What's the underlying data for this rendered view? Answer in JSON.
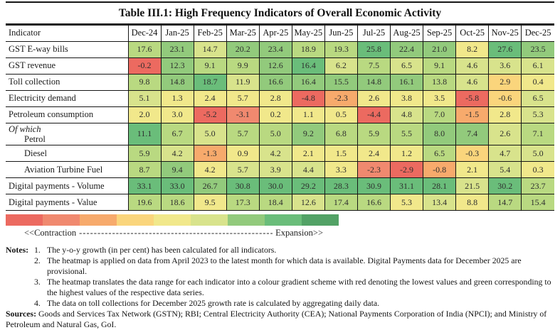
{
  "page_title": "Table III.1: High Frequency Indicators of Overall Economic Activity",
  "palette": [
    "#ec6a60",
    "#f0896f",
    "#f7aa6c",
    "#fad57c",
    "#f1e88b",
    "#d8e38c",
    "#b9d981",
    "#92ca7c",
    "#6abd7a",
    "#52a266"
  ],
  "chart_data": {
    "type": "heatmap",
    "title": "Table III.1: High Frequency Indicators of Overall Economic Activity",
    "indicator_header": "Indicator",
    "columns": [
      "Dec-24",
      "Jan-25",
      "Feb-25",
      "Mar-25",
      "Apr-25",
      "May-25",
      "Jun-25",
      "Jul-25",
      "Aug-25",
      "Sep-25",
      "Oct-25",
      "Nov-25",
      "Dec-25"
    ],
    "value_note": "y-o-y growth (per cent)",
    "rows": [
      {
        "label": "GST E-way bills",
        "values": [
          17.6,
          23.1,
          14.7,
          20.2,
          23.4,
          18.9,
          19.3,
          25.8,
          22.4,
          21.0,
          8.2,
          27.6,
          23.5
        ],
        "color_index": [
          6,
          7,
          5,
          7,
          7,
          6,
          6,
          8,
          7,
          7,
          4,
          8,
          7
        ]
      },
      {
        "label": "GST revenue",
        "values": [
          -0.2,
          12.3,
          9.1,
          9.9,
          12.6,
          16.4,
          6.2,
          7.5,
          6.5,
          9.1,
          4.6,
          3.6,
          6.1
        ],
        "color_index": [
          0,
          7,
          6,
          6,
          7,
          8,
          5,
          6,
          5,
          6,
          5,
          5,
          5
        ]
      },
      {
        "label": "Toll collection",
        "values": [
          9.8,
          14.8,
          18.7,
          11.9,
          16.6,
          16.4,
          15.5,
          14.8,
          16.1,
          13.8,
          4.6,
          2.9,
          0.4
        ],
        "color_index": [
          6,
          7,
          8,
          5,
          7,
          7,
          7,
          7,
          7,
          6,
          5,
          3,
          4
        ]
      },
      {
        "label": "Electricity demand",
        "values": [
          5.1,
          1.3,
          2.4,
          5.7,
          2.8,
          -4.8,
          -2.3,
          2.6,
          3.8,
          3.5,
          -5.8,
          -0.6,
          6.5
        ],
        "color_index": [
          5,
          4,
          4,
          4,
          4,
          0,
          2,
          4,
          4,
          4,
          0,
          3,
          5
        ]
      },
      {
        "label": "Petroleum consumption",
        "values": [
          2.0,
          3.0,
          -5.2,
          -3.1,
          0.2,
          1.1,
          0.5,
          -4.4,
          4.8,
          7.0,
          -1.5,
          2.8,
          5.3
        ],
        "color_index": [
          4,
          4,
          0,
          1,
          4,
          4,
          4,
          0,
          5,
          6,
          2,
          4,
          5
        ]
      },
      {
        "label": "Petrol",
        "group_prefix": "Of which",
        "indent": true,
        "values": [
          11.1,
          6.7,
          5.0,
          5.7,
          5.0,
          9.2,
          6.8,
          5.9,
          5.5,
          8.0,
          7.4,
          2.6,
          7.1
        ],
        "color_index": [
          8,
          6,
          5,
          6,
          6,
          7,
          6,
          6,
          6,
          7,
          7,
          5,
          6
        ]
      },
      {
        "label": "Diesel",
        "indent": true,
        "values": [
          5.9,
          4.2,
          -1.3,
          0.9,
          4.2,
          2.1,
          1.5,
          2.4,
          1.2,
          6.5,
          -0.3,
          4.7,
          5.0
        ],
        "color_index": [
          6,
          5,
          2,
          4,
          5,
          4,
          4,
          4,
          4,
          6,
          3,
          5,
          5
        ]
      },
      {
        "label": "Aviation Turbine Fuel",
        "indent": true,
        "values": [
          8.7,
          9.4,
          4.2,
          5.7,
          3.9,
          4.4,
          3.3,
          -2.3,
          -2.9,
          -0.8,
          2.1,
          5.4,
          0.3
        ],
        "color_index": [
          6,
          7,
          4,
          5,
          5,
          5,
          4,
          1,
          0,
          2,
          4,
          5,
          4
        ]
      },
      {
        "label": "Digital payments - Volume",
        "values": [
          33.1,
          33.0,
          26.7,
          30.8,
          30.0,
          29.2,
          28.3,
          30.9,
          31.1,
          28.1,
          21.5,
          30.2,
          23.7
        ],
        "color_index": [
          8,
          8,
          7,
          8,
          8,
          8,
          8,
          8,
          8,
          8,
          5,
          8,
          6
        ]
      },
      {
        "label": "Digital payments - Value",
        "values": [
          19.6,
          18.6,
          9.5,
          17.3,
          18.4,
          12.6,
          17.4,
          16.6,
          5.3,
          13.4,
          8.8,
          14.7,
          15.4
        ],
        "color_index": [
          6,
          6,
          4,
          6,
          6,
          5,
          6,
          6,
          4,
          5,
          4,
          6,
          6
        ]
      }
    ]
  },
  "legend": {
    "bar_colors": [
      "#ec6a60",
      "#f0896f",
      "#f7aa6c",
      "#fad57c",
      "#f1e88b",
      "#d8e38c",
      "#92ca7c",
      "#6abd7a",
      "#52a266"
    ],
    "contraction_label": "<<Contraction",
    "expansion_label": "Expansion>>",
    "dashes": "--------------------------------------------------------------------------------------------"
  },
  "notes": {
    "heading": "Notes:",
    "items": [
      "The y-o-y growth (in per cent) has been calculated for all indicators.",
      "The heatmap is applied on data from April 2023 to the latest month for which data is available. Digital Payments data for December 2025 are provisional.",
      "The heatmap translates the data range for each indicator into a colour gradient scheme with red denoting the lowest values and green corresponding to the highest values of the respective data series.",
      "The data on toll collections for December 2025 growth rate is calculated by aggregating daily data."
    ],
    "sources_heading": "Sources:",
    "sources_text": "Goods and Services Tax Network (GSTN); RBI; Central Electricity Authority (CEA); National Payments Corporation of India (NPCI); and Ministry of Petroleum and Natural Gas, GoI."
  }
}
